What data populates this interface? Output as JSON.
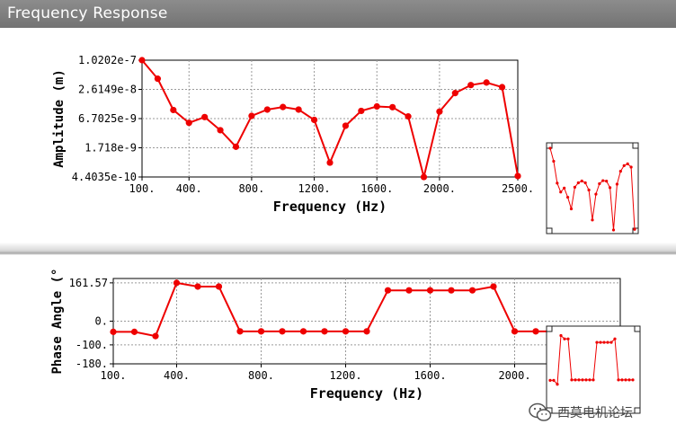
{
  "window": {
    "title": "Frequency Response"
  },
  "colors": {
    "series": "#ee0000",
    "titlebar": "#808080"
  },
  "watermark": {
    "text": "西莫电机论坛",
    "icon": "wechat-icon"
  },
  "chart_data": [
    {
      "type": "line",
      "xlabel": "Frequency (Hz)",
      "ylabel": "Amplitude (m)",
      "xlim": [
        100,
        2500
      ],
      "x_ticks": [
        "100.",
        "400.",
        "800.",
        "1200.",
        "1600.",
        "2000.",
        "2500."
      ],
      "x_tick_values": [
        100,
        400,
        800,
        1200,
        1600,
        2000,
        2500
      ],
      "y_scale": "log",
      "ylim": [
        4.4035e-10,
        1.0202e-07
      ],
      "y_ticks": [
        "1.0202e-7",
        "2.6149e-8",
        "6.7025e-9",
        "1.718e-9",
        "4.4035e-10"
      ],
      "y_tick_values": [
        1.0202e-07,
        2.6149e-08,
        6.7025e-09,
        1.718e-09,
        4.4035e-10
      ],
      "grid": true,
      "x": [
        100,
        200,
        300,
        400,
        500,
        600,
        700,
        800,
        900,
        1000,
        1100,
        1200,
        1300,
        1400,
        1500,
        1600,
        1700,
        1800,
        1900,
        2000,
        2100,
        2200,
        2300,
        2400,
        2500
      ],
      "y": [
        1.02e-07,
        4.3e-08,
        1e-08,
        5.5e-09,
        7.2e-09,
        3.9e-09,
        1.8e-09,
        7.6e-09,
        1.02e-08,
        1.15e-08,
        1.02e-08,
        6.3e-09,
        8.6e-10,
        4.8e-09,
        9.6e-09,
        1.18e-08,
        1.14e-08,
        7.4e-09,
        4.4e-10,
        9.3e-09,
        2.2e-08,
        3.2e-08,
        3.6e-08,
        2.9e-08,
        4.6e-10
      ]
    },
    {
      "type": "line",
      "xlabel": "Frequency (Hz)",
      "ylabel": "Phase Angle (°",
      "xlim": [
        100,
        2500
      ],
      "x_ticks": [
        "100.",
        "400.",
        "800.",
        "1200.",
        "1600.",
        "2000."
      ],
      "x_tick_values": [
        100,
        400,
        800,
        1200,
        1600,
        2000
      ],
      "ylim": [
        -180,
        180
      ],
      "y_ticks": [
        "161.57",
        "0.",
        "-100.",
        "-180."
      ],
      "y_tick_values": [
        161.57,
        0,
        -100,
        -180
      ],
      "grid": true,
      "x": [
        100,
        200,
        300,
        400,
        500,
        600,
        700,
        800,
        900,
        1000,
        1100,
        1200,
        1300,
        1400,
        1500,
        1600,
        1700,
        1800,
        1900,
        2000,
        2100,
        2200,
        2300,
        2400
      ],
      "y": [
        -45,
        -45,
        -63,
        161.57,
        146,
        146,
        -43,
        -43,
        -43,
        -43,
        -43,
        -43,
        -43,
        130,
        130,
        130,
        130,
        130,
        146,
        -43,
        -43,
        -43,
        -43,
        -43
      ]
    }
  ]
}
